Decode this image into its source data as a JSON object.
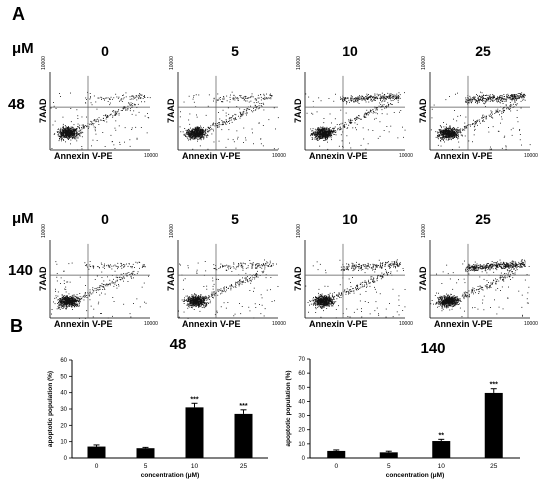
{
  "panel_a": {
    "letter": "A",
    "unit_label": "μM",
    "concentrations": [
      "0",
      "5",
      "10",
      "25"
    ],
    "rows": [
      {
        "time": "48",
        "conditions": [
          "0",
          "5",
          "10",
          "25"
        ]
      },
      {
        "time": "140",
        "conditions": [
          "0",
          "5",
          "10",
          "25"
        ]
      }
    ],
    "y_axis_label": "7AAD",
    "x_axis_label": "Annexin V-PE",
    "axis_max_tick": "10000"
  },
  "panel_b": {
    "letter": "B"
  },
  "chart_data": [
    {
      "type": "bar",
      "title": "48",
      "categories": [
        "0",
        "5",
        "10",
        "25"
      ],
      "values": [
        7,
        6,
        31,
        27
      ],
      "errors": [
        1,
        0.5,
        2.5,
        2.5
      ],
      "significance": [
        "",
        "",
        "***",
        "***"
      ],
      "xlabel": "concentration (μM)",
      "ylabel": "apoptotic population (%)",
      "ylim": [
        0,
        60
      ],
      "yticks": [
        0,
        10,
        20,
        30,
        40,
        50,
        60
      ],
      "grid": false
    },
    {
      "type": "bar",
      "title": "140",
      "categories": [
        "0",
        "5",
        "10",
        "25"
      ],
      "values": [
        5,
        4,
        12,
        46
      ],
      "errors": [
        0.7,
        0.8,
        1.2,
        3
      ],
      "significance": [
        "",
        "",
        "**",
        "***"
      ],
      "xlabel": "concentration (μM)",
      "ylabel": "apoptotic population (%)",
      "ylim": [
        0,
        70
      ],
      "yticks": [
        0,
        10,
        20,
        30,
        40,
        50,
        60,
        70
      ],
      "grid": false
    }
  ]
}
